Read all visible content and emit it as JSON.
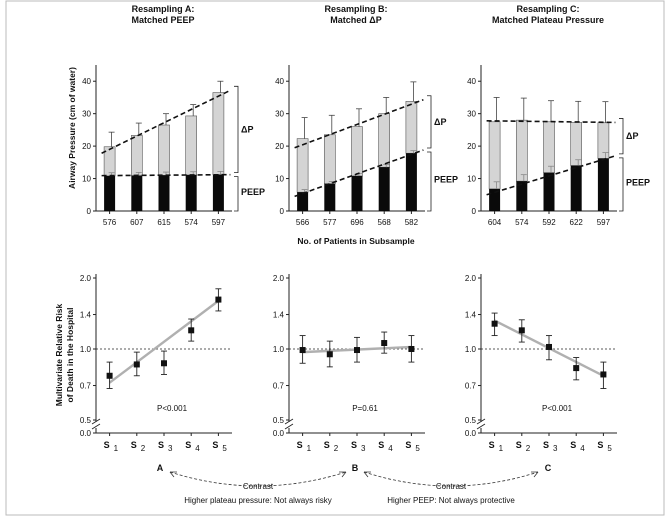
{
  "chart_data": [
    {
      "type": "bar",
      "title": "Resampling A:",
      "subtitle": "Matched PEEP",
      "categories": [
        "576",
        "607",
        "615",
        "574",
        "597"
      ],
      "series": [
        {
          "name": "PEEP",
          "values": [
            10.8,
            10.9,
            11.0,
            11.1,
            11.2
          ],
          "err": [
            1.0,
            1.0,
            1.0,
            1.0,
            1.0
          ]
        },
        {
          "name": "ΔP",
          "values": [
            19.8,
            23.3,
            26.5,
            29.3,
            36.5
          ],
          "err": [
            4.5,
            3.8,
            3.5,
            3.5,
            3.5
          ]
        }
      ],
      "trend_peep": [
        10.9,
        11.2
      ],
      "trend_total": [
        17.8,
        37.2
      ],
      "bracket_top": "ΔP",
      "bracket_bottom": "PEEP",
      "ylim": [
        0,
        45
      ],
      "yticks": [
        "0",
        "10",
        "20",
        "30",
        "40"
      ],
      "ylabel": "Airway Pressure (cm of water)"
    },
    {
      "type": "bar",
      "title": "Resampling B:",
      "subtitle": "Matched ΔP",
      "categories": [
        "566",
        "577",
        "696",
        "568",
        "582"
      ],
      "series": [
        {
          "name": "PEEP",
          "values": [
            5.8,
            8.4,
            10.8,
            13.5,
            17.8
          ],
          "err": [
            0.8,
            0.7,
            0.8,
            0.8,
            0.8
          ]
        },
        {
          "name": "ΔP",
          "values": [
            22.3,
            23.5,
            26.0,
            30.0,
            33.8
          ],
          "err": [
            6.5,
            6.0,
            5.5,
            5.0,
            6.0
          ]
        }
      ],
      "trend_peep": [
        4.5,
        18.8
      ],
      "trend_total": [
        19.5,
        34.3
      ],
      "bracket_top": "ΔP",
      "bracket_bottom": "PEEP",
      "ylim": [
        0,
        45
      ],
      "yticks": [
        "0",
        "10",
        "20",
        "30",
        "40"
      ],
      "xlabel": "No. of Patients in Subsample"
    },
    {
      "type": "bar",
      "title": "Resampling C:",
      "subtitle": "Matched Plateau Pressure",
      "categories": [
        "604",
        "574",
        "592",
        "622",
        "597"
      ],
      "series": [
        {
          "name": "PEEP",
          "values": [
            6.8,
            9.2,
            11.8,
            14.0,
            16.2
          ],
          "err": [
            2.2,
            2.0,
            2.0,
            1.8,
            1.8
          ]
        },
        {
          "name": "ΔP",
          "values": [
            27.5,
            28.0,
            27.5,
            27.3,
            27.2
          ],
          "err": [
            7.5,
            6.8,
            6.5,
            6.5,
            6.5
          ]
        }
      ],
      "trend_peep": [
        5.0,
        17.0
      ],
      "trend_total": [
        27.8,
        27.3
      ],
      "bracket_top": "ΔP",
      "bracket_bottom": "PEEP",
      "ylim": [
        0,
        45
      ],
      "yticks": [
        "0",
        "10",
        "20",
        "30",
        "40"
      ]
    },
    {
      "type": "scatter",
      "letter": "A",
      "categories": [
        "S",
        "S",
        "S",
        "S",
        "S"
      ],
      "subscripts": [
        "1",
        "2",
        "3",
        "4",
        "5"
      ],
      "values": [
        0.77,
        0.86,
        0.87,
        1.2,
        1.62
      ],
      "ci_low": [
        0.68,
        0.77,
        0.78,
        1.08,
        1.45
      ],
      "ci_high": [
        0.88,
        0.97,
        0.98,
        1.34,
        1.8
      ],
      "fit": [
        0.72,
        1.6
      ],
      "ref_line": 1.0,
      "pvalue": "P<0.001",
      "ylabel": "Multivariate Relative Risk of Death in the Hospital",
      "yticks": [
        "0.0",
        "0.5",
        "0.7",
        "1.0",
        "1.4",
        "2.0"
      ],
      "yscale": "log"
    },
    {
      "type": "scatter",
      "letter": "B",
      "categories": [
        "S",
        "S",
        "S",
        "S",
        "S"
      ],
      "subscripts": [
        "1",
        "2",
        "3",
        "4",
        "5"
      ],
      "values": [
        0.99,
        0.95,
        0.99,
        1.06,
        1.0
      ],
      "ci_low": [
        0.87,
        0.84,
        0.88,
        0.96,
        0.88
      ],
      "ci_high": [
        1.14,
        1.08,
        1.12,
        1.18,
        1.14
      ],
      "fit": [
        0.97,
        1.02
      ],
      "ref_line": 1.0,
      "pvalue": "P=0.61",
      "yticks": [
        "0.0",
        "0.5",
        "0.7",
        "1.0",
        "1.4",
        "2.0"
      ],
      "yscale": "log"
    },
    {
      "type": "scatter",
      "letter": "C",
      "categories": [
        "S",
        "S",
        "S",
        "S",
        "S"
      ],
      "subscripts": [
        "1",
        "2",
        "3",
        "4",
        "5"
      ],
      "values": [
        1.28,
        1.2,
        1.02,
        0.83,
        0.78
      ],
      "ci_low": [
        1.14,
        1.07,
        0.9,
        0.74,
        0.68
      ],
      "ci_high": [
        1.42,
        1.33,
        1.14,
        0.92,
        0.88
      ],
      "fit": [
        1.32,
        0.77
      ],
      "ref_line": 1.0,
      "pvalue": "P<0.001",
      "yticks": [
        "0.0",
        "0.5",
        "0.7",
        "1.0",
        "1.4",
        "2.0"
      ],
      "yscale": "log"
    }
  ],
  "contrast": {
    "left_label": "Contrast",
    "left_caption": "Higher plateau pressure: Not always risky",
    "right_label": "Contrast",
    "right_caption": "Higher PEEP: Not always protective"
  },
  "colors": {
    "peep_bar": "#0a0a0a",
    "dp_bar": "#d4d4d4",
    "fit_line": "#b0b0b0",
    "frame": "#bbbbbb"
  }
}
